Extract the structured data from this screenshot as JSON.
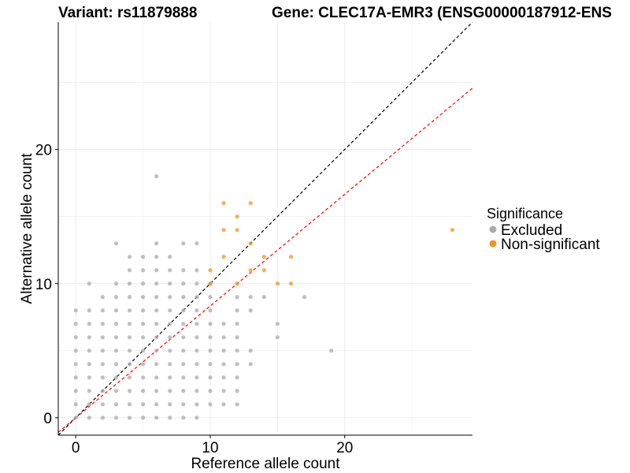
{
  "chart_data": {
    "type": "scatter",
    "title_left": "Variant: rs11879888",
    "title_right": "Gene: CLEC17A-EMR3 (ENSG00000187912-ENS",
    "xlabel": "Reference allele count",
    "ylabel": "Alternative allele count",
    "xlim": [
      -1.3,
      29.5
    ],
    "ylim": [
      -1.3,
      29.5
    ],
    "x_ticks": [
      0,
      10,
      20
    ],
    "y_ticks": [
      0,
      10,
      20
    ],
    "grid": true,
    "reference_lines": [
      {
        "name": "identity",
        "slope": 1.0,
        "color": "#000000"
      },
      {
        "name": "expected",
        "slope": 0.833,
        "color": "#ff0000"
      }
    ],
    "legend": {
      "title": "Significance",
      "position": "right",
      "entries": [
        {
          "label": "Excluded",
          "color": "#aaaaaa"
        },
        {
          "label": "Non-significant",
          "color": "#f7941d"
        }
      ]
    },
    "series": [
      {
        "name": "Excluded",
        "color": "#aaaaaa",
        "points": [
          [
            0,
            0
          ],
          [
            0,
            1
          ],
          [
            0,
            2
          ],
          [
            0,
            3
          ],
          [
            0,
            4
          ],
          [
            0,
            5
          ],
          [
            0,
            6
          ],
          [
            0,
            7
          ],
          [
            0,
            8
          ],
          [
            1,
            0
          ],
          [
            1,
            1
          ],
          [
            1,
            2
          ],
          [
            1,
            3
          ],
          [
            1,
            4
          ],
          [
            1,
            5
          ],
          [
            1,
            6
          ],
          [
            1,
            7
          ],
          [
            1,
            8
          ],
          [
            1,
            10
          ],
          [
            2,
            0
          ],
          [
            2,
            1
          ],
          [
            2,
            2
          ],
          [
            2,
            3
          ],
          [
            2,
            4
          ],
          [
            2,
            5
          ],
          [
            2,
            6
          ],
          [
            2,
            7
          ],
          [
            2,
            8
          ],
          [
            2,
            9
          ],
          [
            3,
            0
          ],
          [
            3,
            1
          ],
          [
            3,
            2
          ],
          [
            3,
            3
          ],
          [
            3,
            4
          ],
          [
            3,
            5
          ],
          [
            3,
            6
          ],
          [
            3,
            7
          ],
          [
            3,
            8
          ],
          [
            3,
            9
          ],
          [
            3,
            10
          ],
          [
            3,
            13
          ],
          [
            4,
            0
          ],
          [
            4,
            1
          ],
          [
            4,
            2
          ],
          [
            4,
            3
          ],
          [
            4,
            4
          ],
          [
            4,
            5
          ],
          [
            4,
            6
          ],
          [
            4,
            7
          ],
          [
            4,
            8
          ],
          [
            4,
            9
          ],
          [
            4,
            10
          ],
          [
            4,
            11
          ],
          [
            4,
            12
          ],
          [
            5,
            0
          ],
          [
            5,
            1
          ],
          [
            5,
            2
          ],
          [
            5,
            3
          ],
          [
            5,
            4
          ],
          [
            5,
            5
          ],
          [
            5,
            6
          ],
          [
            5,
            7
          ],
          [
            5,
            8
          ],
          [
            5,
            9
          ],
          [
            5,
            10
          ],
          [
            5,
            11
          ],
          [
            5,
            12
          ],
          [
            6,
            0
          ],
          [
            6,
            1
          ],
          [
            6,
            2
          ],
          [
            6,
            3
          ],
          [
            6,
            4
          ],
          [
            6,
            5
          ],
          [
            6,
            6
          ],
          [
            6,
            7
          ],
          [
            6,
            8
          ],
          [
            6,
            9
          ],
          [
            6,
            10
          ],
          [
            6,
            11
          ],
          [
            6,
            12
          ],
          [
            6,
            13
          ],
          [
            6,
            18
          ],
          [
            7,
            0
          ],
          [
            7,
            1
          ],
          [
            7,
            2
          ],
          [
            7,
            3
          ],
          [
            7,
            4
          ],
          [
            7,
            5
          ],
          [
            7,
            6
          ],
          [
            7,
            7
          ],
          [
            7,
            8
          ],
          [
            7,
            9
          ],
          [
            7,
            10
          ],
          [
            7,
            11
          ],
          [
            7,
            12
          ],
          [
            8,
            0
          ],
          [
            8,
            1
          ],
          [
            8,
            2
          ],
          [
            8,
            3
          ],
          [
            8,
            4
          ],
          [
            8,
            5
          ],
          [
            8,
            6
          ],
          [
            8,
            7
          ],
          [
            8,
            8
          ],
          [
            8,
            9
          ],
          [
            8,
            10
          ],
          [
            8,
            11
          ],
          [
            8,
            13
          ],
          [
            9,
            0
          ],
          [
            9,
            1
          ],
          [
            9,
            2
          ],
          [
            9,
            3
          ],
          [
            9,
            4
          ],
          [
            9,
            5
          ],
          [
            9,
            6
          ],
          [
            9,
            7
          ],
          [
            9,
            8
          ],
          [
            9,
            9
          ],
          [
            9,
            10
          ],
          [
            9,
            11
          ],
          [
            9,
            13
          ],
          [
            10,
            1
          ],
          [
            10,
            2
          ],
          [
            10,
            3
          ],
          [
            10,
            4
          ],
          [
            10,
            5
          ],
          [
            10,
            6
          ],
          [
            10,
            7
          ],
          [
            10,
            8
          ],
          [
            10,
            9
          ],
          [
            10,
            10
          ],
          [
            11,
            1
          ],
          [
            11,
            2
          ],
          [
            11,
            3
          ],
          [
            11,
            4
          ],
          [
            11,
            5
          ],
          [
            11,
            6
          ],
          [
            11,
            7
          ],
          [
            12,
            1
          ],
          [
            12,
            2
          ],
          [
            12,
            3
          ],
          [
            12,
            4
          ],
          [
            12,
            5
          ],
          [
            12,
            6
          ],
          [
            12,
            7
          ],
          [
            12,
            8
          ],
          [
            12,
            9
          ],
          [
            13,
            4
          ],
          [
            13,
            5
          ],
          [
            13,
            8
          ],
          [
            13,
            9
          ],
          [
            14,
            9
          ],
          [
            15,
            6
          ],
          [
            15,
            7
          ],
          [
            17,
            9
          ],
          [
            19,
            5
          ]
        ]
      },
      {
        "name": "Non-significant",
        "color": "#f7941d",
        "points": [
          [
            10,
            10
          ],
          [
            10,
            11
          ],
          [
            11,
            12
          ],
          [
            11,
            14
          ],
          [
            11,
            16
          ],
          [
            12,
            10
          ],
          [
            12,
            14
          ],
          [
            12,
            15
          ],
          [
            13,
            11
          ],
          [
            13,
            13
          ],
          [
            13,
            16
          ],
          [
            14,
            11
          ],
          [
            14,
            12
          ],
          [
            15,
            10
          ],
          [
            16,
            10
          ],
          [
            16,
            12
          ],
          [
            28,
            14
          ]
        ]
      }
    ]
  }
}
